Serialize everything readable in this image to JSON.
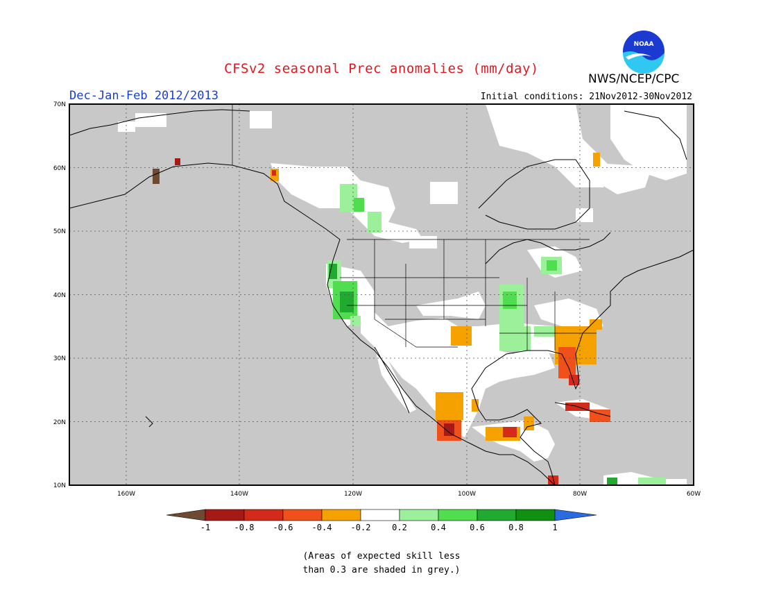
{
  "title": "CFSv2 seasonal Prec anomalies (mm/day)",
  "period": "Dec-Jan-Feb 2012/2013",
  "initial_conditions": "Initial conditions: 21Nov2012-30Nov2012",
  "agency": "NWS/NCEP/CPC",
  "logo_text": "NOAA",
  "map": {
    "lon_range": [
      -170,
      -60
    ],
    "lat_range": [
      10,
      70
    ],
    "lat_labels": [
      "70N",
      "60N",
      "50N",
      "40N",
      "30N",
      "20N",
      "10N"
    ],
    "lon_labels": [
      "160W",
      "140W",
      "120W",
      "100W",
      "80W",
      "60W"
    ],
    "land_color": "#ffffff",
    "ocean_color": "#c8c8c8"
  },
  "colorbar": {
    "labels": [
      "-1",
      "-0.8",
      "-0.6",
      "-0.4",
      "-0.2",
      "0.2",
      "0.4",
      "0.6",
      "0.8",
      "1"
    ],
    "colors": [
      "#6e4a33",
      "#a51a14",
      "#d42a1a",
      "#f0501a",
      "#f5a100",
      "#ffffff",
      "#9cf09a",
      "#50dd50",
      "#20aa30",
      "#109010",
      "#2a6be0"
    ]
  },
  "note_line1": "(Areas of expected skill less",
  "note_line2": "than 0.3 are shaded in grey.)"
}
